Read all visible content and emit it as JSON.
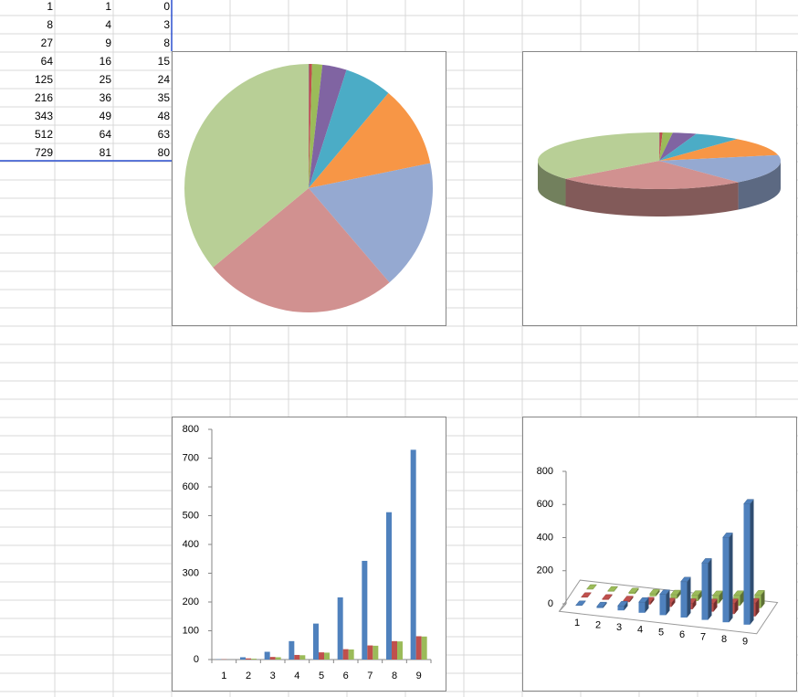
{
  "sheet": {
    "rows": [
      [
        1,
        1,
        0
      ],
      [
        8,
        4,
        3
      ],
      [
        27,
        9,
        8
      ],
      [
        64,
        16,
        15
      ],
      [
        125,
        25,
        24
      ],
      [
        216,
        36,
        35
      ],
      [
        343,
        49,
        48
      ],
      [
        512,
        64,
        63
      ],
      [
        729,
        81,
        80
      ]
    ]
  },
  "chart_data": [
    {
      "type": "pie",
      "values": [
        1,
        8,
        27,
        64,
        125,
        216,
        343,
        512,
        729
      ],
      "colors": [
        "#4f81bd",
        "#c0504d",
        "#9bbb59",
        "#8064a2",
        "#4bacc6",
        "#f79646",
        "#95a9d1",
        "#d19190",
        "#b8cf96"
      ]
    },
    {
      "type": "pie3d",
      "values": [
        1,
        8,
        27,
        64,
        125,
        216,
        343,
        512,
        729
      ],
      "colors": [
        "#4f81bd",
        "#c0504d",
        "#9bbb59",
        "#8064a2",
        "#4bacc6",
        "#f79646",
        "#95a9d1",
        "#d19190",
        "#b8cf96"
      ]
    },
    {
      "type": "bar",
      "categories": [
        "1",
        "2",
        "3",
        "4",
        "5",
        "6",
        "7",
        "8",
        "9"
      ],
      "series": [
        {
          "color": "#4f81bd",
          "values": [
            1,
            8,
            27,
            64,
            125,
            216,
            343,
            512,
            729
          ]
        },
        {
          "color": "#c0504d",
          "values": [
            1,
            4,
            9,
            16,
            25,
            36,
            49,
            64,
            81
          ]
        },
        {
          "color": "#9bbb59",
          "values": [
            0,
            3,
            8,
            15,
            24,
            35,
            48,
            63,
            80
          ]
        }
      ],
      "ylim": [
        0,
        800
      ],
      "yticks": [
        0,
        100,
        200,
        300,
        400,
        500,
        600,
        700,
        800
      ]
    },
    {
      "type": "bar3d",
      "categories": [
        "1",
        "2",
        "3",
        "4",
        "5",
        "6",
        "7",
        "8",
        "9"
      ],
      "series": [
        {
          "color": "#4f81bd",
          "values": [
            1,
            8,
            27,
            64,
            125,
            216,
            343,
            512,
            729
          ]
        },
        {
          "color": "#c0504d",
          "values": [
            1,
            4,
            9,
            16,
            25,
            36,
            49,
            64,
            81
          ]
        },
        {
          "color": "#9bbb59",
          "values": [
            0,
            3,
            8,
            15,
            24,
            35,
            48,
            63,
            80
          ]
        }
      ],
      "ylim": [
        0,
        800
      ],
      "yticks": [
        0,
        200,
        400,
        600,
        800
      ]
    }
  ]
}
